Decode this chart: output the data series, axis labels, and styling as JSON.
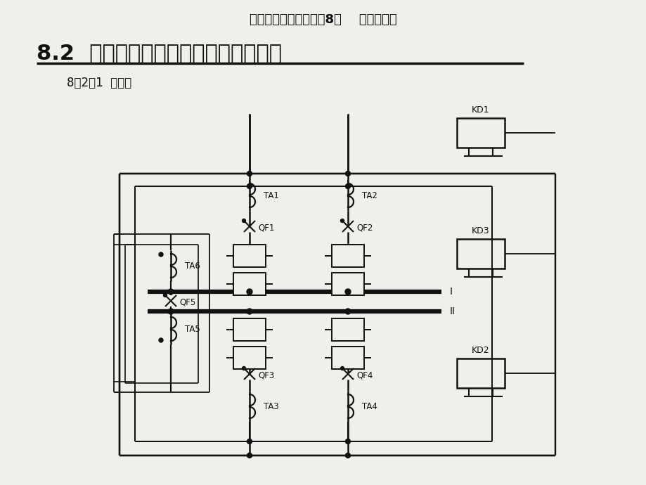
{
  "header": "电力系统继电保护（第8章    母线保护）",
  "main_title": "8.2  母线差动保护（双母线差动举例）",
  "subtitle": "8．2．1  接线图",
  "bg": "#f0efeb",
  "lc": "#111111",
  "bus1_label": "I",
  "bus2_label": "II",
  "kd_labels": [
    "KD1",
    "KD3",
    "KD2"
  ],
  "ta_labels": [
    "TA1",
    "TA2",
    "TA3",
    "TA4",
    "TA5",
    "TA6"
  ],
  "qf_labels": [
    "QF1",
    "QF2",
    "QF3",
    "QF4",
    "QF5"
  ],
  "header_fs": 13,
  "main_title_fs": 22,
  "subtitle_fs": 12
}
